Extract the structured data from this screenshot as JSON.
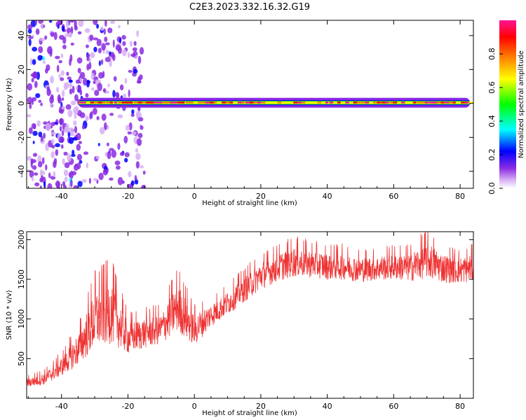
{
  "title": "C2E3.2023.332.16.32.G19",
  "chart_data": [
    {
      "type": "heatmap",
      "xlabel": "Height of straight line (km)",
      "ylabel": "Frequency (Hz)",
      "xlim": [
        -50.5,
        84
      ],
      "ylim": [
        -50,
        49
      ],
      "xticks": [
        -40,
        -20,
        0,
        20,
        40,
        60,
        80
      ],
      "yticks": [
        -40,
        -20,
        0,
        20,
        40
      ],
      "colorbar": {
        "label": "Normalized spectral amplitude",
        "range": [
          0,
          1
        ],
        "ticks": [
          0.0,
          0.2,
          0.4,
          0.6,
          0.8
        ],
        "tick_labels": [
          "0.0",
          "0.2",
          "0.4",
          "0.6",
          "0.8"
        ],
        "colors": [
          "#ffffff",
          "#d7b0f5",
          "#8a2be2",
          "#0000ff",
          "#00ffff",
          "#00ff00",
          "#ffff00",
          "#ff7f00",
          "#ff0000",
          "#ff1493"
        ]
      },
      "signal_line": {
        "frequency_hz": 0,
        "from_km": -35,
        "to_km": 83,
        "peak_amplitude": 1.0
      }
    },
    {
      "type": "line",
      "xlabel": "Height of straight line (km)",
      "ylabel": "SNR (10 * v/v)",
      "xlim": [
        -50.5,
        84
      ],
      "ylim": [
        0,
        2100
      ],
      "xticks": [
        -40,
        -20,
        0,
        20,
        40,
        60,
        80
      ],
      "yticks": [
        500,
        1000,
        1500,
        2000
      ],
      "color": "#ee3333",
      "envelope": {
        "x": [
          -50,
          -45,
          -40,
          -35,
          -30,
          -25,
          -20,
          -15,
          -10,
          -5,
          0,
          5,
          10,
          15,
          20,
          25,
          30,
          35,
          40,
          45,
          50,
          55,
          60,
          65,
          70,
          75,
          80,
          84
        ],
        "lower": [
          100,
          120,
          200,
          280,
          350,
          420,
          420,
          500,
          550,
          620,
          520,
          800,
          950,
          1100,
          1250,
          1350,
          1400,
          1400,
          1380,
          1380,
          1350,
          1380,
          1380,
          1350,
          1350,
          1330,
          1330,
          1350
        ],
        "upper": [
          300,
          380,
          600,
          950,
          1650,
          1780,
          1100,
          1150,
          1200,
          1700,
          1200,
          1300,
          1450,
          1650,
          1850,
          1950,
          2050,
          2000,
          1950,
          1950,
          1900,
          1900,
          1950,
          1950,
          2150,
          1950,
          1900,
          1950
        ]
      }
    }
  ]
}
